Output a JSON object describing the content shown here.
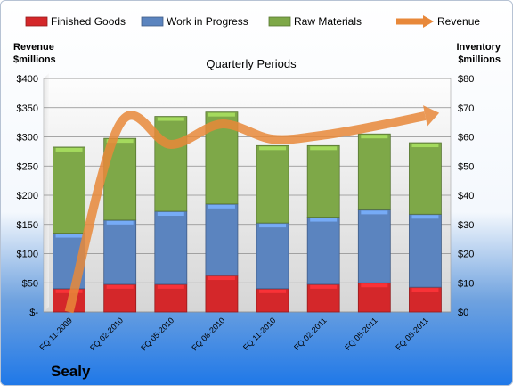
{
  "chart_data": {
    "type": "bar",
    "title": "Quarterly Periods",
    "company": "Sealy",
    "y_left_label": [
      "Revenue",
      "$millions"
    ],
    "y_right_label": [
      "Inventory",
      "$millions"
    ],
    "ylim_left": [
      0,
      400
    ],
    "ylim_right": [
      0,
      80
    ],
    "left_ticks": [
      "$-",
      "$50",
      "$100",
      "$150",
      "$200",
      "$250",
      "$300",
      "$350",
      "$400"
    ],
    "right_ticks": [
      "$0",
      "$10",
      "$20",
      "$30",
      "$40",
      "$50",
      "$60",
      "$70",
      "$80"
    ],
    "categories": [
      "FQ 11-2009",
      "FQ 02-2010",
      "FQ 05-2010",
      "FQ 08-2010",
      "FQ 11-2010",
      "FQ 02-2011",
      "FQ 05-2011",
      "FQ 08-2011"
    ],
    "stacked": true,
    "grid": true,
    "legend_position": "top",
    "series": [
      {
        "name": "Finished Goods",
        "axis": "right",
        "color": "#d4272a",
        "values": [
          8,
          9.5,
          9.5,
          12.5,
          8,
          9.5,
          10,
          8.5
        ]
      },
      {
        "name": "Work in Progress",
        "axis": "right",
        "color": "#5b84bf",
        "values": [
          19,
          22,
          25,
          24.5,
          22.5,
          23,
          25,
          25
        ]
      },
      {
        "name": "Raw Materials",
        "axis": "right",
        "color": "#7ea848",
        "values": [
          29.5,
          28,
          32.5,
          31.5,
          26.5,
          24.5,
          26,
          24.5
        ]
      },
      {
        "name": "Revenue",
        "axis": "left",
        "type": "line",
        "color": "#e8883a",
        "values": [
          0,
          322,
          287,
          322,
          296,
          303,
          318,
          336
        ]
      }
    ]
  }
}
